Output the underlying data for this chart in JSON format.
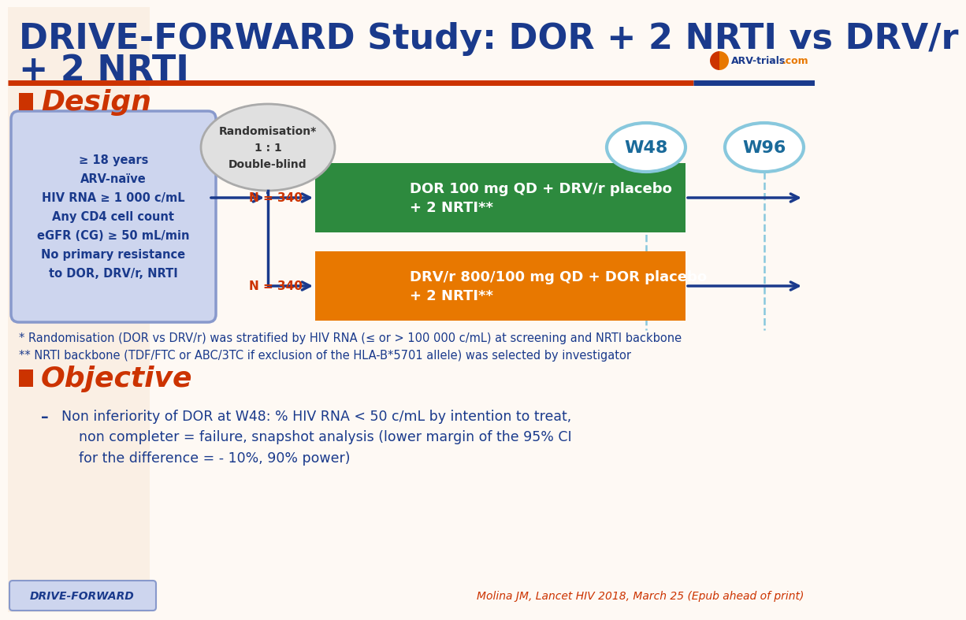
{
  "title_line1": "DRIVE-FORWARD Study: DOR + 2 NRTI vs DRV/r",
  "title_line2": "+ 2 NRTI",
  "title_color": "#1a3a8c",
  "title_fontsize": 30,
  "bg_color": "#fef9f4",
  "section_design_color": "#cc3300",
  "section_design_text": "Design",
  "section_objective_color": "#cc3300",
  "section_objective_text": "Objective",
  "orange_bar_text": "DRV/r 800/100 mg QD + DOR placebo\n+ 2 NRTI**",
  "green_bar_text": "DOR 100 mg QD + DRV/r placebo\n+ 2 NRTI**",
  "green_color": "#2d8a3e",
  "orange_color": "#e87800",
  "left_box_text": "≥ 18 years\nARV-naïve\nHIV RNA ≥ 1 000 c/mL\nAny CD4 cell count\neGFR (CG) ≥ 50 mL/min\nNo primary resistance\nto DOR, DRV/r, NRTI",
  "left_box_bg": "#cdd5ee",
  "left_box_border": "#8899cc",
  "rand_box_text": "Randomisation*\n1 : 1\nDouble-blind",
  "rand_box_bg": "#e0e0e0",
  "rand_box_border": "#aaaaaa",
  "n340_color": "#cc3300",
  "w48_text": "W48",
  "w96_text": "W96",
  "w_circle_color": "#88c8dd",
  "w_text_color": "#1a6a9a",
  "arrow_color": "#1a3a8c",
  "footnote1": "* Randomisation (DOR vs DRV/r) was stratified by HIV RNA (≤ or > 100 000 c/mL) at screening and NRTI backbone",
  "footnote2": "** NRTI backbone (TDF/FTC or ABC/3TC if exclusion of the HLA-B*5701 allele) was selected by investigator",
  "footnote_color": "#1a3a8c",
  "footnote_fontsize": 10.5,
  "objective_bullet": "Non inferiority of DOR at W48: % HIV RNA < 50 c/mL by intention to treat,\n    non completer = failure, snapshot analysis (lower margin of the 95% CI\n    for the difference = - 10%, 90% power)",
  "objective_color": "#1a3a8c",
  "bottom_left_text": "DRIVE-FORWARD",
  "bottom_right_text": "Molina JM, Lancet HIV 2018, March 25 (Epub ahead of print)",
  "bottom_right_color": "#cc3300",
  "logo_blue": "#1a3a8c",
  "logo_orange": "#e87800",
  "logo_red": "#cc3300"
}
